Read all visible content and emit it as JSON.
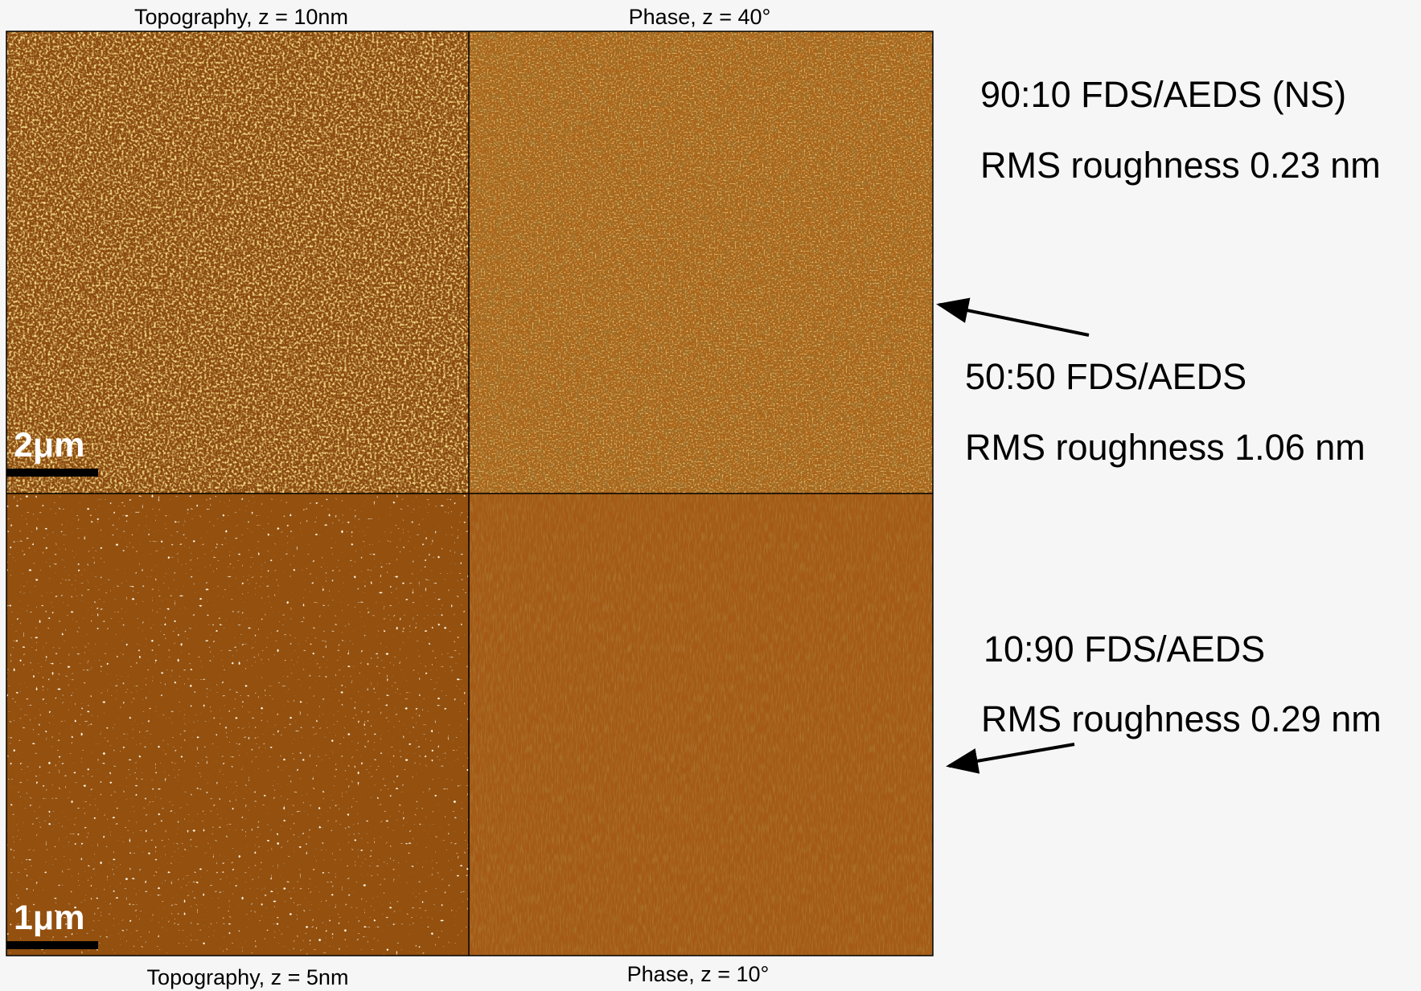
{
  "panels": {
    "top": {
      "topography_label": "Topography, z = 10nm",
      "phase_label": "Phase, z = 40°",
      "scale_bar": "2μm"
    },
    "bottom": {
      "topography_label": "Topography, z = 5nm",
      "phase_label": "Phase, z = 10°",
      "scale_bar": "1μm"
    }
  },
  "annotations": [
    {
      "sample": "90:10 FDS/AEDS (NS)",
      "roughness": "RMS roughness 0.23 nm"
    },
    {
      "sample": "50:50 FDS/AEDS",
      "roughness": "RMS roughness 1.06 nm"
    },
    {
      "sample": "10:90 FDS/AEDS",
      "roughness": "RMS roughness 0.29 nm"
    }
  ]
}
